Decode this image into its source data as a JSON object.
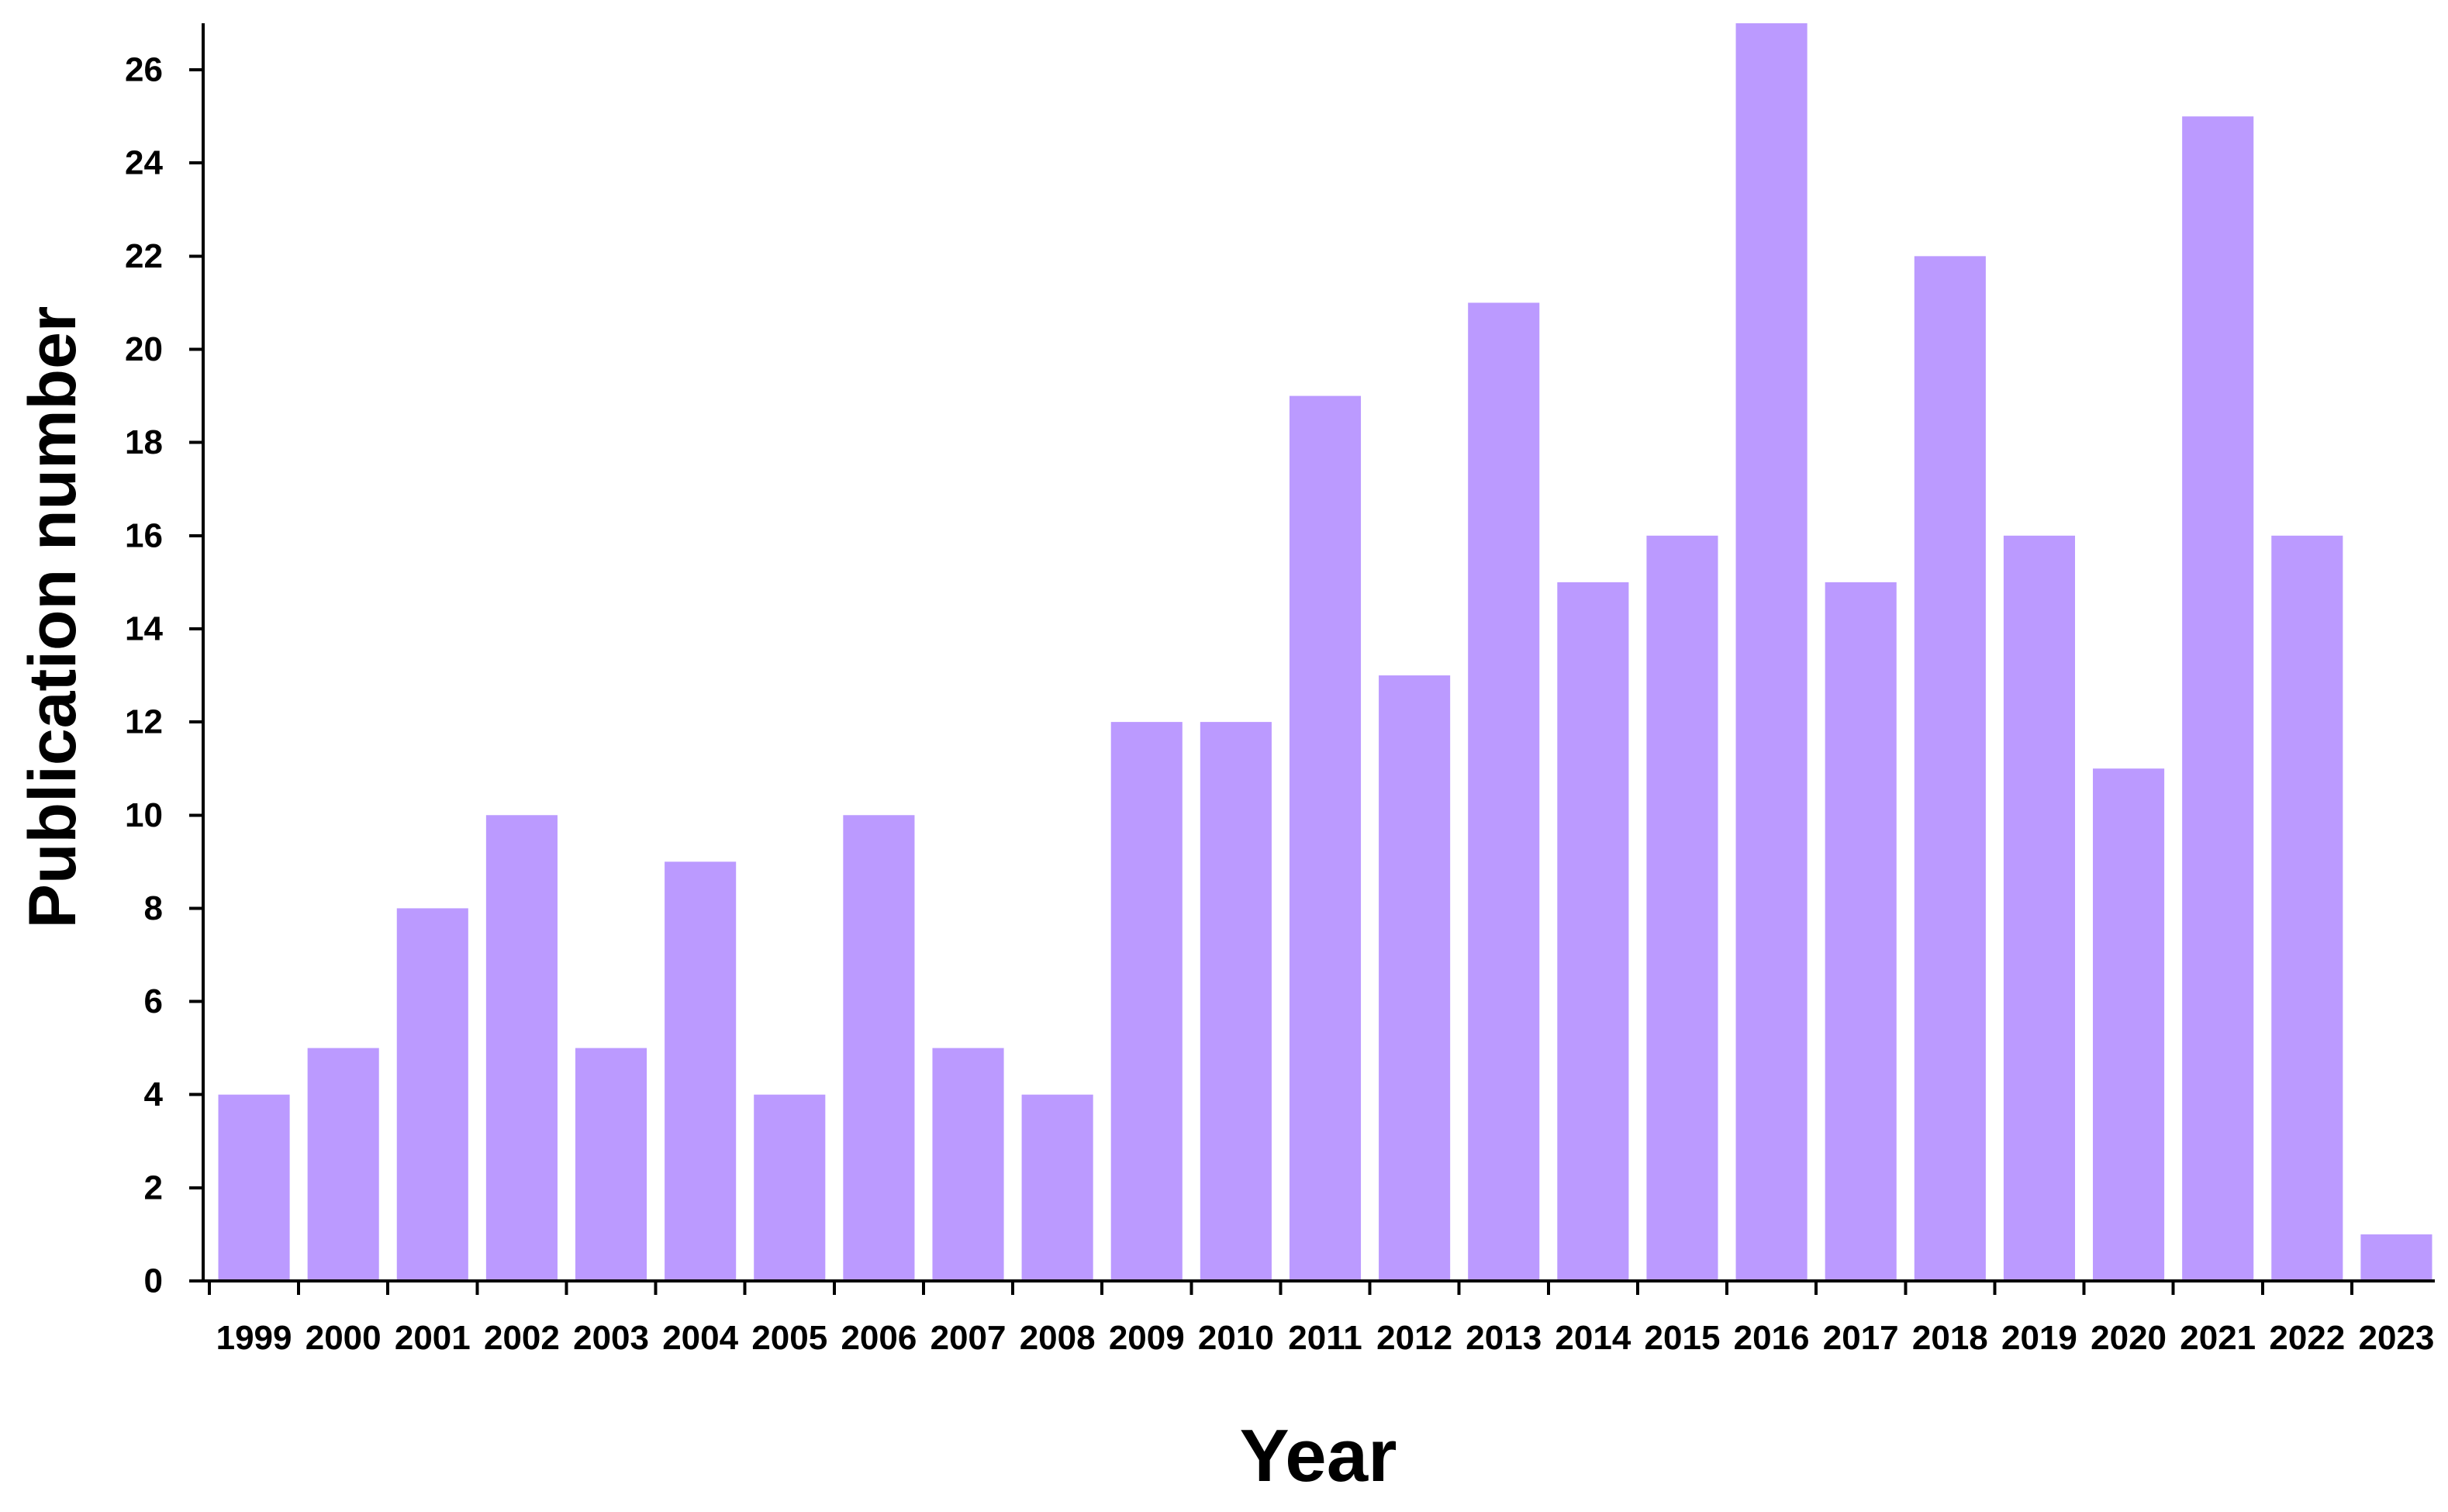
{
  "chart_data": {
    "type": "bar",
    "title": "",
    "xlabel": "Year",
    "ylabel": "Publication number",
    "ylim": [
      0,
      27
    ],
    "yticks": [
      0,
      2,
      4,
      6,
      8,
      10,
      12,
      14,
      16,
      18,
      20,
      22,
      24,
      26
    ],
    "grid": false,
    "legend": "none",
    "bar_color": "#BB9AFF",
    "categories": [
      "1999",
      "2000",
      "2001",
      "2002",
      "2003",
      "2004",
      "2005",
      "2006",
      "2007",
      "2008",
      "2009",
      "2010",
      "2011",
      "2012",
      "2013",
      "2014",
      "2015",
      "2016",
      "2017",
      "2018",
      "2019",
      "2020",
      "2021",
      "2022",
      "2023"
    ],
    "values": [
      4,
      5,
      8,
      10,
      5,
      9,
      4,
      10,
      5,
      4,
      12,
      12,
      19,
      13,
      21,
      15,
      16,
      27,
      15,
      22,
      16,
      11,
      25,
      16,
      1
    ]
  }
}
